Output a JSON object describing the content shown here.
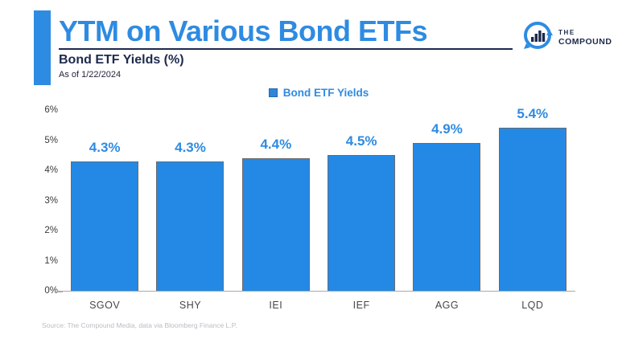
{
  "header": {
    "title": "YTM on Various Bond ETFs",
    "subtitle": "Bond ETF Yields (%)",
    "as_of": "As of 1/22/2024",
    "logo": {
      "line1": "THE",
      "line2": "COMPOUND"
    }
  },
  "legend": {
    "label": "Bond ETF Yields"
  },
  "chart_data": {
    "type": "bar",
    "title": "Bond ETF Yields (%)",
    "subtitle": "As of 1/22/2024",
    "categories": [
      "SGOV",
      "SHY",
      "IEI",
      "IEF",
      "AGG",
      "LQD"
    ],
    "values": [
      4.3,
      4.3,
      4.4,
      4.5,
      4.9,
      5.4
    ],
    "value_labels": [
      "4.3%",
      "4.3%",
      "4.4%",
      "4.5%",
      "4.9%",
      "5.4%"
    ],
    "xlabel": "",
    "ylabel": "",
    "ylim": [
      0,
      6
    ],
    "yticks": [
      "0%",
      "1%",
      "2%",
      "3%",
      "4%",
      "5%",
      "6%"
    ],
    "grid": false,
    "legend_entries": [
      "Bond ETF Yields"
    ],
    "legend_position": "top-center",
    "bar_color": "#2489E5"
  },
  "footer": {
    "source": "Source: The Compound Media, data via Bloomberg Finance L.P."
  },
  "colors": {
    "accent_blue": "#2E8BE2",
    "bar_blue": "#2489E5",
    "navy": "#1D2A4D"
  }
}
